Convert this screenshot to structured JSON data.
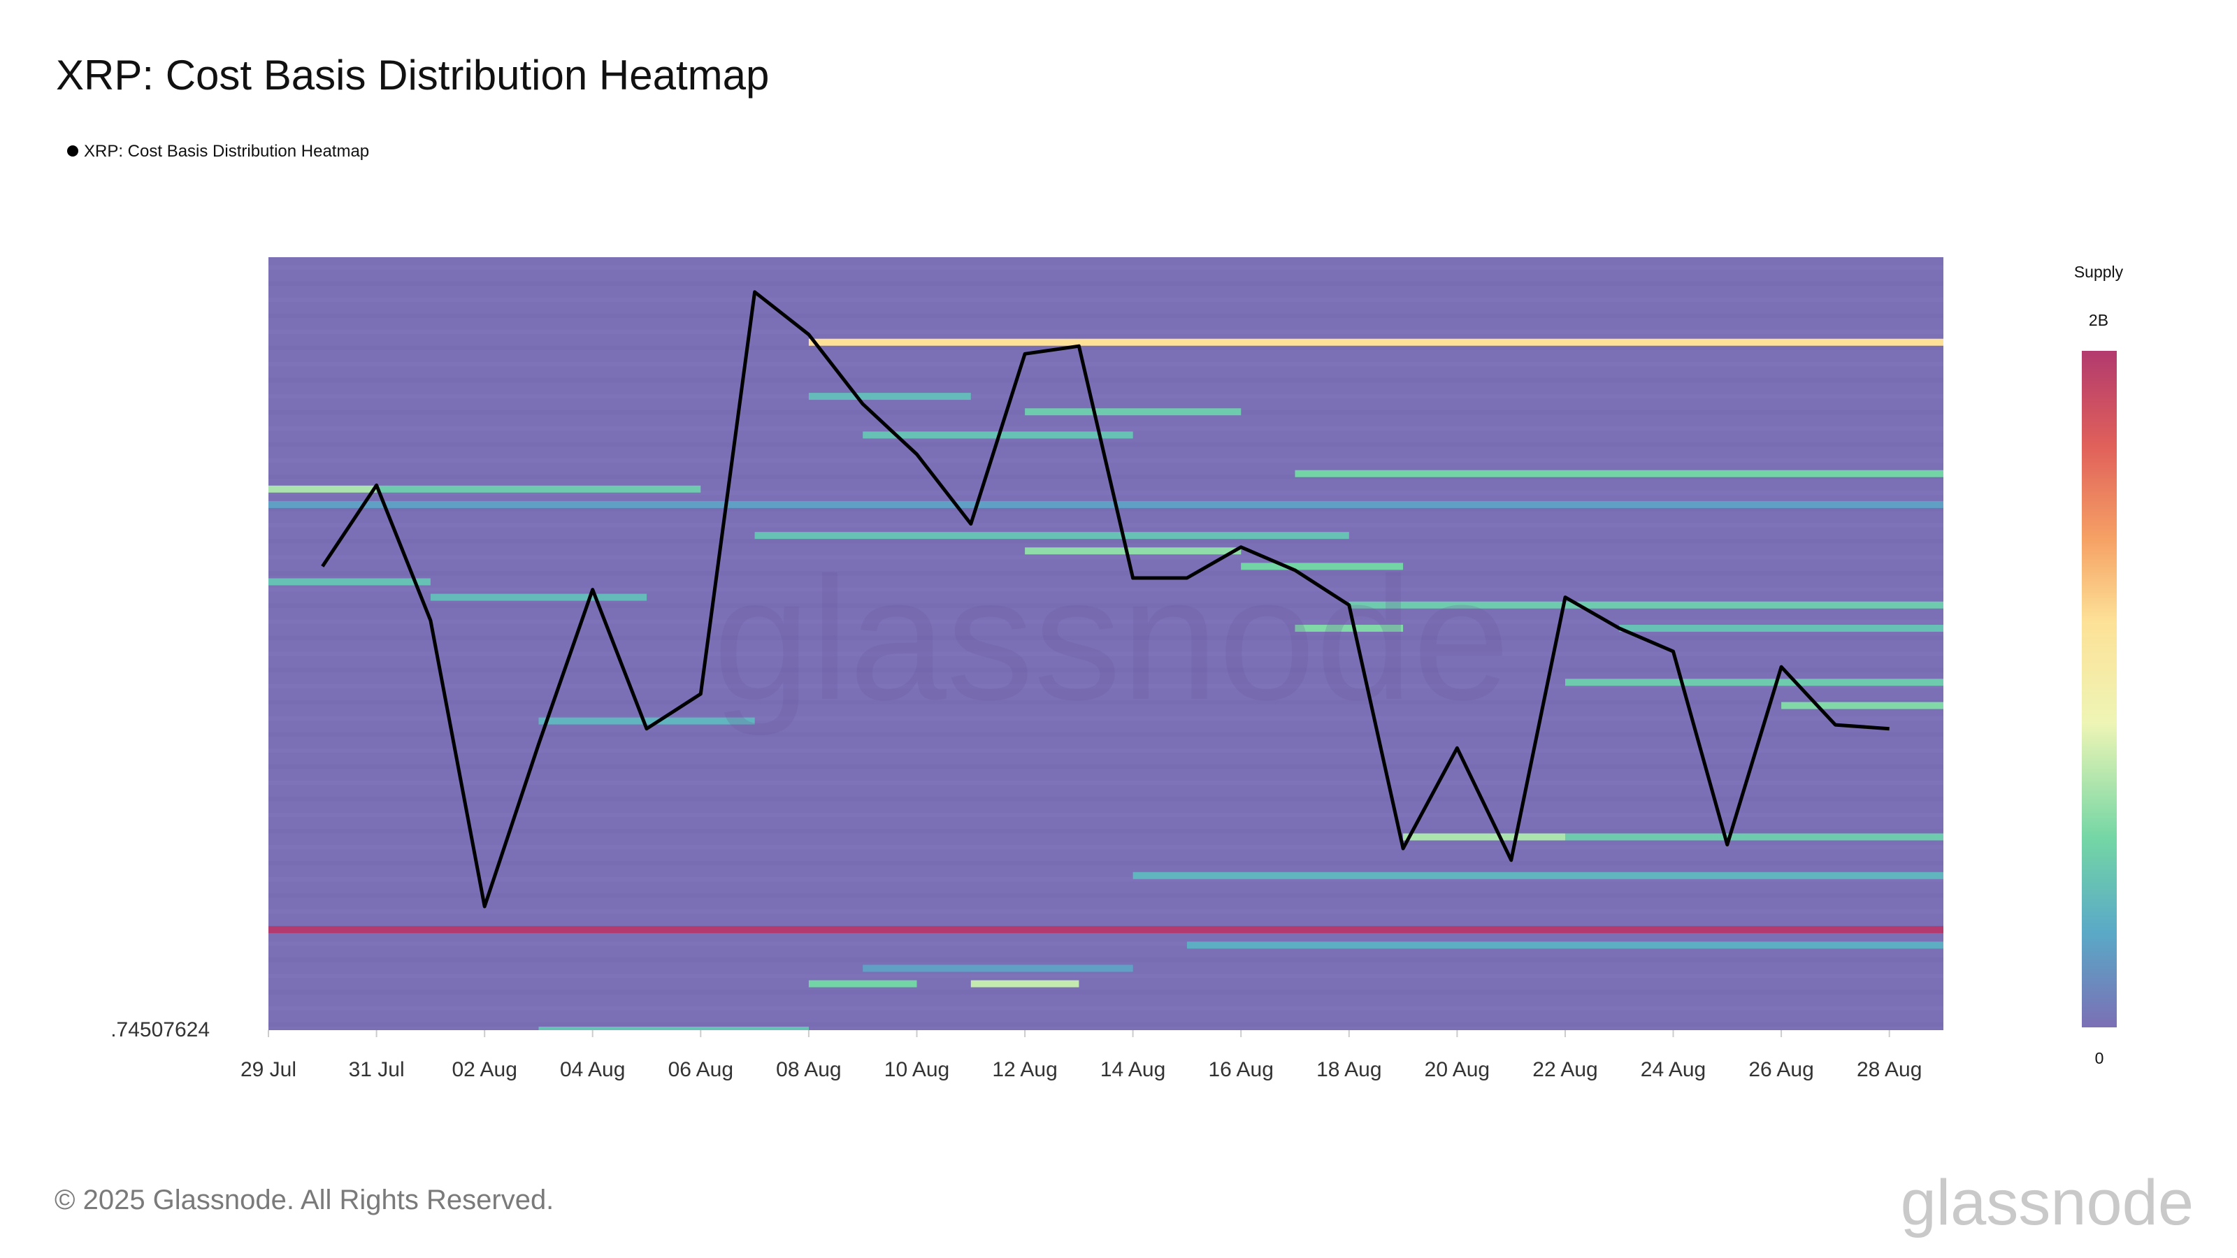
{
  "title": "XRP: Cost Basis Distribution Heatmap",
  "legend": {
    "label": "XRP: Cost Basis Distribution Heatmap",
    "marker_color": "#000000"
  },
  "colorbar": {
    "title": "Supply",
    "max_label": "2B",
    "min_label": "0",
    "stops": [
      "#7b6fb5",
      "#5aa9c7",
      "#74d6a5",
      "#eef5b5",
      "#fde197",
      "#f6a265",
      "#e0605a",
      "#b23a6e"
    ]
  },
  "footer": {
    "copyright": "© 2025 Glassnode. All Rights Reserved.",
    "logo_text": "glassnode"
  },
  "watermark_text": "glassnode",
  "colors": {
    "heatmap_base": "#7b6fb5",
    "price_line": "#000000"
  },
  "chart_data": {
    "type": "heatmap",
    "title": "XRP: Cost Basis Distribution Heatmap",
    "xlabel": "",
    "ylabel": "",
    "y_axis_label": ".74507624",
    "x_ticks": [
      "29 Jul",
      "31 Jul",
      "02 Aug",
      "04 Aug",
      "06 Aug",
      "08 Aug",
      "10 Aug",
      "12 Aug",
      "14 Aug",
      "16 Aug",
      "18 Aug",
      "20 Aug",
      "22 Aug",
      "24 Aug",
      "26 Aug",
      "28 Aug"
    ],
    "x_start": "2025-07-29",
    "x_end": "2025-08-29",
    "price_series": {
      "x": [
        "2025-07-30",
        "2025-07-31",
        "2025-08-01",
        "2025-08-02",
        "2025-08-03",
        "2025-08-04",
        "2025-08-05",
        "2025-08-06",
        "2025-08-07",
        "2025-08-08",
        "2025-08-09",
        "2025-08-10",
        "2025-08-11",
        "2025-08-12",
        "2025-08-13",
        "2025-08-14",
        "2025-08-15",
        "2025-08-16",
        "2025-08-17",
        "2025-08-18",
        "2025-08-19",
        "2025-08-20",
        "2025-08-21",
        "2025-08-22",
        "2025-08-23",
        "2025-08-24",
        "2025-08-25",
        "2025-08-26",
        "2025-08-27",
        "2025-08-28"
      ],
      "y": [
        0.6,
        0.705,
        0.53,
        0.16,
        0.37,
        0.57,
        0.39,
        0.435,
        0.955,
        0.9,
        0.81,
        0.745,
        0.655,
        0.875,
        0.885,
        0.585,
        0.585,
        0.625,
        0.595,
        0.55,
        0.235,
        0.365,
        0.22,
        0.56,
        0.52,
        0.49,
        0.24,
        0.47,
        0.395,
        0.39
      ]
    },
    "highlight_bands": [
      {
        "y": 0.89,
        "x_from": "2025-08-08",
        "x_to": "2025-08-29",
        "color": "#fde197"
      },
      {
        "y": 0.13,
        "x_from": "2025-07-29",
        "x_to": "2025-08-29",
        "color": "#b23a6e"
      }
    ],
    "cells": [
      [
        0.7,
        "2025-07-29",
        "2025-07-31",
        0.35
      ],
      [
        0.7,
        "2025-07-31",
        "2025-08-06",
        0.25
      ],
      [
        0.68,
        "2025-07-29",
        "2025-08-29",
        0.12
      ],
      [
        0.64,
        "2025-08-07",
        "2025-08-18",
        0.22
      ],
      [
        0.62,
        "2025-08-12",
        "2025-08-16",
        0.32
      ],
      [
        0.6,
        "2025-08-16",
        "2025-08-19",
        0.28
      ],
      [
        0.55,
        "2025-08-18",
        "2025-08-29",
        0.25
      ],
      [
        0.52,
        "2025-08-17",
        "2025-08-19",
        0.3
      ],
      [
        0.52,
        "2025-08-23",
        "2025-08-29",
        0.22
      ],
      [
        0.58,
        "2025-07-29",
        "2025-08-01",
        0.22
      ],
      [
        0.56,
        "2025-08-01",
        "2025-08-05",
        0.2
      ],
      [
        0.4,
        "2025-08-03",
        "2025-08-07",
        0.18
      ],
      [
        0.45,
        "2025-08-22",
        "2025-08-29",
        0.25
      ],
      [
        0.42,
        "2025-08-26",
        "2025-08-29",
        0.3
      ],
      [
        0.72,
        "2025-08-17",
        "2025-08-29",
        0.28
      ],
      [
        0.77,
        "2025-08-09",
        "2025-08-14",
        0.22
      ],
      [
        0.8,
        "2025-08-12",
        "2025-08-16",
        0.25
      ],
      [
        0.82,
        "2025-08-08",
        "2025-08-11",
        0.2
      ],
      [
        0.25,
        "2025-08-19",
        "2025-08-22",
        0.35
      ],
      [
        0.25,
        "2025-08-22",
        "2025-08-29",
        0.25
      ],
      [
        0.2,
        "2025-08-14",
        "2025-08-29",
        0.18
      ],
      [
        0.06,
        "2025-08-08",
        "2025-08-10",
        0.28
      ],
      [
        0.06,
        "2025-08-11",
        "2025-08-13",
        0.38
      ],
      [
        0.08,
        "2025-08-10",
        "2025-08-13",
        0.2
      ],
      [
        0.0,
        "2025-08-03",
        "2025-08-08",
        0.22
      ],
      [
        0.11,
        "2025-08-15",
        "2025-08-29",
        0.16
      ],
      [
        0.08,
        "2025-08-09",
        "2025-08-14",
        0.12
      ]
    ]
  }
}
